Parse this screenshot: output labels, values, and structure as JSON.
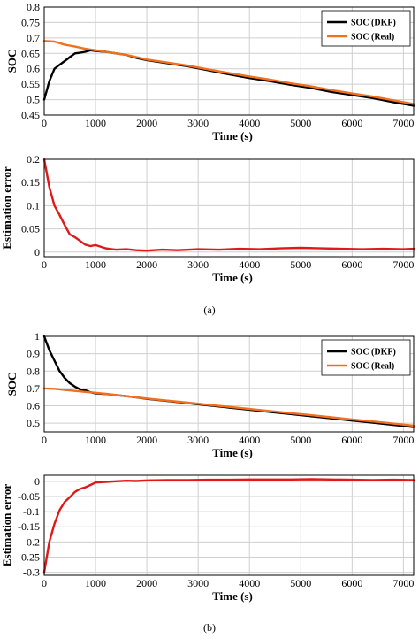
{
  "figure": {
    "caption_a": "(a)",
    "caption_b": "(b)"
  },
  "colors": {
    "dkf": "#000000",
    "real": "#f07020",
    "error": "#e01818",
    "grid": "#cfcfcf"
  },
  "chart_data": [
    {
      "id": "a_soc",
      "type": "line",
      "xlabel": "Time (s)",
      "ylabel": "SOC",
      "xlim": [
        0,
        7200
      ],
      "ylim": [
        0.45,
        0.8
      ],
      "xticks": [
        "0",
        "1000",
        "2000",
        "3000",
        "4000",
        "5000",
        "6000",
        "7000"
      ],
      "yticks": [
        "0.45",
        "0.5",
        "0.55",
        "0.6",
        "0.65",
        "0.7",
        "0.75",
        "0.8"
      ],
      "grid": true,
      "legend_position": "top-right",
      "series": [
        {
          "name": "SOC (DKF)",
          "color": "#000000",
          "x": [
            0,
            100,
            200,
            300,
            400,
            500,
            600,
            700,
            800,
            900,
            1000,
            1200,
            1400,
            1600,
            1800,
            2000,
            2400,
            2800,
            3200,
            3600,
            4000,
            4400,
            4800,
            5200,
            5600,
            6000,
            6400,
            6800,
            7200
          ],
          "y": [
            0.5,
            0.56,
            0.6,
            0.613,
            0.625,
            0.638,
            0.65,
            0.652,
            0.655,
            0.66,
            0.658,
            0.655,
            0.65,
            0.645,
            0.635,
            0.628,
            0.618,
            0.608,
            0.595,
            0.582,
            0.57,
            0.56,
            0.548,
            0.538,
            0.525,
            0.515,
            0.505,
            0.492,
            0.48
          ]
        },
        {
          "name": "SOC (Real)",
          "color": "#f07020",
          "x": [
            0,
            200,
            400,
            600,
            800,
            1000,
            1200,
            1400,
            1600,
            1800,
            2000,
            2400,
            2800,
            3200,
            3600,
            4000,
            4400,
            4800,
            5200,
            5600,
            6000,
            6400,
            6800,
            7200
          ],
          "y": [
            0.69,
            0.688,
            0.678,
            0.672,
            0.665,
            0.66,
            0.655,
            0.65,
            0.645,
            0.638,
            0.63,
            0.62,
            0.61,
            0.598,
            0.586,
            0.575,
            0.565,
            0.553,
            0.543,
            0.531,
            0.52,
            0.51,
            0.498,
            0.486
          ]
        }
      ]
    },
    {
      "id": "a_err",
      "type": "line",
      "xlabel": "Time (s)",
      "ylabel": "Estimation error",
      "xlim": [
        0,
        7200
      ],
      "ylim": [
        -0.01,
        0.2
      ],
      "xticks": [
        "0",
        "1000",
        "2000",
        "3000",
        "4000",
        "5000",
        "6000",
        "7000"
      ],
      "yticks": [
        "0",
        "0.05",
        "0.1",
        "0.15",
        "0.2"
      ],
      "grid": true,
      "series": [
        {
          "color": "#e01818",
          "x": [
            0,
            100,
            200,
            300,
            400,
            500,
            600,
            700,
            800,
            900,
            1000,
            1200,
            1400,
            1600,
            1800,
            2000,
            2300,
            2600,
            3000,
            3400,
            3800,
            4200,
            4600,
            5000,
            5400,
            5800,
            6200,
            6600,
            7000,
            7200
          ],
          "y": [
            0.2,
            0.14,
            0.1,
            0.08,
            0.058,
            0.038,
            0.032,
            0.024,
            0.016,
            0.013,
            0.015,
            0.008,
            0.005,
            0.006,
            0.004,
            0.003,
            0.005,
            0.004,
            0.006,
            0.005,
            0.007,
            0.006,
            0.008,
            0.009,
            0.008,
            0.007,
            0.006,
            0.007,
            0.006,
            0.007
          ]
        }
      ]
    },
    {
      "id": "b_soc",
      "type": "line",
      "xlabel": "Time (s)",
      "ylabel": "SOC",
      "xlim": [
        0,
        7200
      ],
      "ylim": [
        0.45,
        1.0
      ],
      "xticks": [
        "0",
        "1000",
        "2000",
        "3000",
        "4000",
        "5000",
        "6000",
        "7000"
      ],
      "yticks": [
        "0.5",
        "0.6",
        "0.7",
        "0.8",
        "0.9",
        "1"
      ],
      "grid": true,
      "legend_position": "top-right",
      "series": [
        {
          "name": "SOC (DKF)",
          "color": "#000000",
          "x": [
            0,
            100,
            200,
            300,
            400,
            500,
            600,
            700,
            800,
            900,
            1000,
            1200,
            1400,
            1600,
            1800,
            2000,
            2400,
            2800,
            3200,
            3600,
            4000,
            4400,
            4800,
            5200,
            5600,
            6000,
            6400,
            6800,
            7200
          ],
          "y": [
            1.0,
            0.92,
            0.86,
            0.8,
            0.76,
            0.73,
            0.71,
            0.695,
            0.69,
            0.678,
            0.672,
            0.668,
            0.662,
            0.655,
            0.648,
            0.64,
            0.628,
            0.615,
            0.603,
            0.59,
            0.578,
            0.565,
            0.553,
            0.54,
            0.528,
            0.515,
            0.503,
            0.49,
            0.478
          ]
        },
        {
          "name": "SOC (Real)",
          "color": "#f07020",
          "x": [
            0,
            200,
            400,
            600,
            800,
            1000,
            1200,
            1400,
            1600,
            1800,
            2000,
            2400,
            2800,
            3200,
            3600,
            4000,
            4400,
            4800,
            5200,
            5600,
            6000,
            6400,
            6800,
            7200
          ],
          "y": [
            0.7,
            0.698,
            0.692,
            0.686,
            0.68,
            0.675,
            0.669,
            0.662,
            0.655,
            0.649,
            0.642,
            0.63,
            0.618,
            0.606,
            0.594,
            0.582,
            0.57,
            0.558,
            0.546,
            0.534,
            0.522,
            0.51,
            0.498,
            0.486
          ]
        }
      ]
    },
    {
      "id": "b_err",
      "type": "line",
      "xlabel": "Time (s)",
      "ylabel": "Estimation error",
      "xlim": [
        0,
        7200
      ],
      "ylim": [
        -0.31,
        0.02
      ],
      "xticks": [
        "0",
        "1000",
        "2000",
        "3000",
        "4000",
        "5000",
        "6000",
        "7000"
      ],
      "yticks": [
        "0",
        "-0.05",
        "-0.1",
        "-0.15",
        "-0.2",
        "-0.25",
        "-0.3"
      ],
      "grid": true,
      "series": [
        {
          "color": "#e01818",
          "x": [
            0,
            100,
            200,
            300,
            400,
            500,
            600,
            700,
            800,
            900,
            1000,
            1200,
            1400,
            1600,
            1800,
            2000,
            2400,
            2800,
            3200,
            3600,
            4000,
            4400,
            4800,
            5200,
            5600,
            6000,
            6400,
            6800,
            7200
          ],
          "y": [
            -0.3,
            -0.2,
            -0.14,
            -0.095,
            -0.068,
            -0.052,
            -0.035,
            -0.025,
            -0.02,
            -0.012,
            -0.004,
            -0.002,
            0.0,
            0.002,
            0.001,
            0.003,
            0.004,
            0.004,
            0.005,
            0.005,
            0.006,
            0.006,
            0.006,
            0.007,
            0.006,
            0.005,
            0.004,
            0.005,
            0.004
          ]
        }
      ]
    }
  ]
}
